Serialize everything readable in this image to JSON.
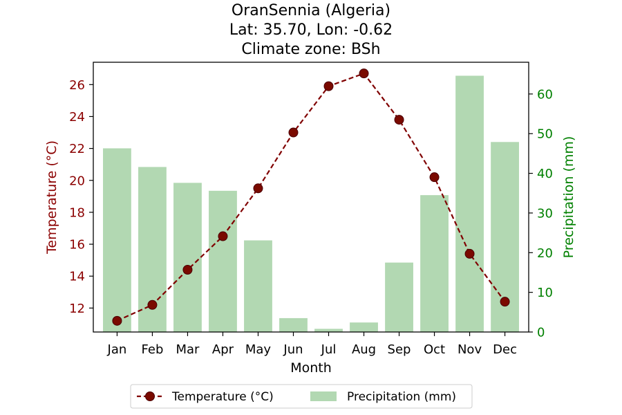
{
  "chart_data": {
    "type": "bar",
    "title_lines": [
      "OranSennia (Algeria)",
      "Lat: 35.70, Lon: -0.62",
      "Climate zone: BSh"
    ],
    "xlabel": "Month",
    "ylabel_left": "Temperature (°C)",
    "ylabel_right": "Precipitation (mm)",
    "categories": [
      "Jan",
      "Feb",
      "Mar",
      "Apr",
      "May",
      "Jun",
      "Jul",
      "Aug",
      "Sep",
      "Oct",
      "Nov",
      "Dec"
    ],
    "series": [
      {
        "name": "Temperature (°C)",
        "kind": "line",
        "axis": "left",
        "color": "#800000",
        "values": [
          11.2,
          12.2,
          14.4,
          16.5,
          19.5,
          23.0,
          25.9,
          26.7,
          23.8,
          20.2,
          15.4,
          12.4
        ]
      },
      {
        "name": "Precipitation (mm)",
        "kind": "bar",
        "axis": "right",
        "color": "#b2d8b2",
        "values": [
          46.3,
          41.6,
          37.6,
          35.6,
          23.1,
          3.5,
          0.8,
          2.4,
          17.5,
          34.5,
          64.6,
          47.9
        ]
      }
    ],
    "ylim_left": [
      10.5,
      27.4
    ],
    "yticks_left": [
      12,
      14,
      16,
      18,
      20,
      22,
      24,
      26
    ],
    "ylim_right": [
      0,
      68
    ],
    "yticks_right": [
      0,
      10,
      20,
      30,
      40,
      50,
      60
    ],
    "left_axis_color": "#8b0000",
    "right_axis_color": "#008000",
    "grid": false,
    "legend_placement": "bottom-center"
  }
}
